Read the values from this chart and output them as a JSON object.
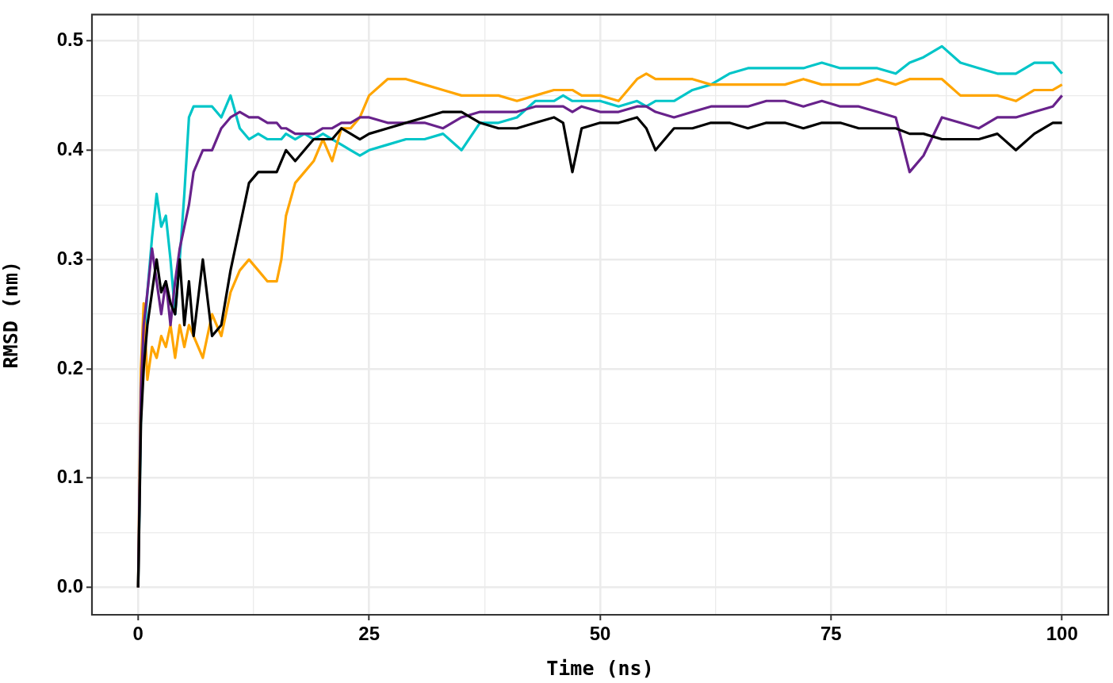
{
  "chart_data": {
    "type": "line",
    "xlabel": "Time (ns)",
    "ylabel": "RMSD (nm)",
    "x": [
      0,
      0.3,
      0.6,
      1,
      1.5,
      2,
      2.5,
      3,
      3.5,
      4,
      4.5,
      5,
      5.5,
      6,
      7,
      8,
      9,
      10,
      11,
      12,
      13,
      14,
      15,
      15.5,
      16,
      17,
      18,
      19,
      20,
      21,
      22,
      23,
      24,
      25,
      27,
      29,
      31,
      33,
      35,
      37,
      39,
      41,
      43,
      45,
      46,
      47,
      48,
      50,
      52,
      54,
      55,
      56,
      58,
      60,
      62,
      64,
      66,
      68,
      70,
      72,
      74,
      76,
      78,
      80,
      82,
      83.5,
      85,
      87,
      89,
      91,
      93,
      95,
      97,
      99,
      100
    ],
    "series": [
      {
        "color": "#00c5c8",
        "values": [
          0,
          0.16,
          0.22,
          0.27,
          0.32,
          0.36,
          0.33,
          0.34,
          0.3,
          0.25,
          0.3,
          0.36,
          0.43,
          0.44,
          0.44,
          0.44,
          0.43,
          0.45,
          0.42,
          0.41,
          0.415,
          0.41,
          0.41,
          0.41,
          0.415,
          0.41,
          0.415,
          0.41,
          0.415,
          0.41,
          0.405,
          0.4,
          0.395,
          0.4,
          0.405,
          0.41,
          0.41,
          0.415,
          0.4,
          0.425,
          0.425,
          0.43,
          0.445,
          0.445,
          0.45,
          0.445,
          0.445,
          0.445,
          0.44,
          0.445,
          0.44,
          0.445,
          0.445,
          0.455,
          0.46,
          0.47,
          0.475,
          0.475,
          0.475,
          0.475,
          0.48,
          0.475,
          0.475,
          0.475,
          0.47,
          0.48,
          0.485,
          0.495,
          0.48,
          0.475,
          0.47,
          0.47,
          0.48,
          0.48,
          0.47
        ]
      },
      {
        "color": "#ffa500",
        "values": [
          0,
          0.2,
          0.26,
          0.19,
          0.22,
          0.21,
          0.23,
          0.22,
          0.24,
          0.21,
          0.24,
          0.22,
          0.24,
          0.23,
          0.21,
          0.25,
          0.23,
          0.27,
          0.29,
          0.3,
          0.29,
          0.28,
          0.28,
          0.3,
          0.34,
          0.37,
          0.38,
          0.39,
          0.41,
          0.39,
          0.42,
          0.42,
          0.43,
          0.45,
          0.465,
          0.465,
          0.46,
          0.455,
          0.45,
          0.45,
          0.45,
          0.445,
          0.45,
          0.455,
          0.455,
          0.455,
          0.45,
          0.45,
          0.445,
          0.465,
          0.47,
          0.465,
          0.465,
          0.465,
          0.46,
          0.46,
          0.46,
          0.46,
          0.46,
          0.465,
          0.46,
          0.46,
          0.46,
          0.465,
          0.46,
          0.465,
          0.465,
          0.465,
          0.45,
          0.45,
          0.45,
          0.445,
          0.455,
          0.455,
          0.46
        ]
      },
      {
        "color": "#68228b",
        "values": [
          0,
          0.18,
          0.24,
          0.27,
          0.31,
          0.28,
          0.25,
          0.28,
          0.24,
          0.28,
          0.31,
          0.33,
          0.35,
          0.38,
          0.4,
          0.4,
          0.42,
          0.43,
          0.435,
          0.43,
          0.43,
          0.425,
          0.425,
          0.42,
          0.42,
          0.415,
          0.415,
          0.415,
          0.42,
          0.42,
          0.425,
          0.425,
          0.43,
          0.43,
          0.425,
          0.425,
          0.425,
          0.42,
          0.43,
          0.435,
          0.435,
          0.435,
          0.44,
          0.44,
          0.44,
          0.435,
          0.44,
          0.435,
          0.435,
          0.44,
          0.44,
          0.435,
          0.43,
          0.435,
          0.44,
          0.44,
          0.44,
          0.445,
          0.445,
          0.44,
          0.445,
          0.44,
          0.44,
          0.435,
          0.43,
          0.38,
          0.395,
          0.43,
          0.425,
          0.42,
          0.43,
          0.43,
          0.435,
          0.44,
          0.45
        ]
      },
      {
        "color": "#000000",
        "values": [
          0,
          0.15,
          0.2,
          0.24,
          0.27,
          0.3,
          0.27,
          0.28,
          0.26,
          0.25,
          0.3,
          0.24,
          0.28,
          0.23,
          0.3,
          0.23,
          0.24,
          0.29,
          0.33,
          0.37,
          0.38,
          0.38,
          0.38,
          0.39,
          0.4,
          0.39,
          0.4,
          0.41,
          0.41,
          0.41,
          0.42,
          0.415,
          0.41,
          0.415,
          0.42,
          0.425,
          0.43,
          0.435,
          0.435,
          0.425,
          0.42,
          0.42,
          0.425,
          0.43,
          0.425,
          0.38,
          0.42,
          0.425,
          0.425,
          0.43,
          0.42,
          0.4,
          0.42,
          0.42,
          0.425,
          0.425,
          0.42,
          0.425,
          0.425,
          0.42,
          0.425,
          0.425,
          0.42,
          0.42,
          0.42,
          0.415,
          0.415,
          0.41,
          0.41,
          0.41,
          0.415,
          0.4,
          0.415,
          0.425,
          0.425
        ]
      }
    ],
    "xlim": [
      -5,
      105
    ],
    "ylim": [
      -0.025,
      0.524
    ],
    "xticks": [
      0,
      {
        "value": 12.5,
        "label": null
      },
      25,
      {
        "value": 37.5,
        "label": null
      },
      50,
      {
        "value": 62.5,
        "label": null
      },
      75,
      {
        "value": 87.5,
        "label": null
      },
      100
    ],
    "yticks": [
      {
        "value": 0,
        "label": "0.0"
      },
      {
        "value": 0.05,
        "label": null
      },
      0.1,
      {
        "value": 0.15,
        "label": null
      },
      0.2,
      {
        "value": 0.25,
        "label": null
      },
      0.3,
      {
        "value": 0.35,
        "label": null
      },
      0.4,
      {
        "value": 0.45,
        "label": null
      },
      0.5
    ],
    "grid": true,
    "legend": false,
    "line_style": "solid"
  }
}
